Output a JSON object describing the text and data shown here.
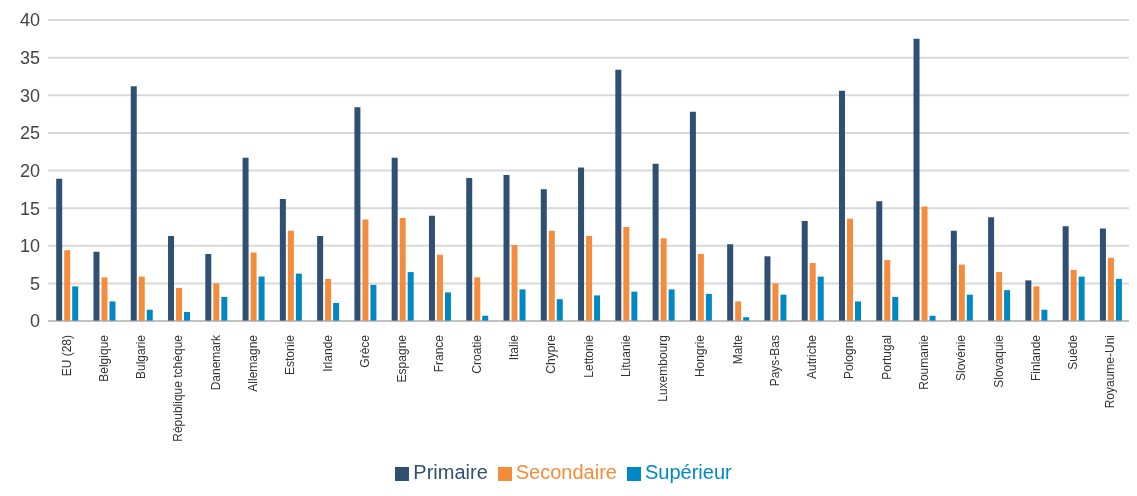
{
  "chart_data": {
    "type": "bar",
    "categories": [
      "EU (28)",
      "Belgique",
      "Bulgarie",
      "République tchèque",
      "Danemark",
      "Allemagne",
      "Estonie",
      "Irlande",
      "Grèce",
      "Espagne",
      "France",
      "Croatie",
      "Italie",
      "Chypre",
      "Lettonie",
      "Lituanie",
      "Luxembourg",
      "Hongrie",
      "Malte",
      "Pays-Bas",
      "Autriche",
      "Pologne",
      "Portugal",
      "Roumanie",
      "Slovénie",
      "Slovaquie",
      "Finlande",
      "Suède",
      "Royaume-Uni"
    ],
    "series": [
      {
        "name": "Primaire",
        "color": "#2f5073",
        "values": [
          18.9,
          9.2,
          31.2,
          11.3,
          8.9,
          21.7,
          16.2,
          11.3,
          28.4,
          21.7,
          14.0,
          19.0,
          19.4,
          17.5,
          20.4,
          33.4,
          20.9,
          27.8,
          10.2,
          8.6,
          13.3,
          30.6,
          15.9,
          37.5,
          12.0,
          13.8,
          5.4,
          12.6,
          12.3
        ]
      },
      {
        "name": "Secondaire",
        "color": "#f58c3c",
        "values": [
          9.4,
          5.8,
          5.9,
          4.4,
          5.0,
          9.1,
          12.0,
          5.6,
          13.5,
          13.7,
          8.8,
          5.8,
          10.1,
          12.0,
          11.3,
          12.5,
          11.0,
          8.9,
          2.6,
          5.0,
          7.7,
          13.6,
          8.1,
          15.2,
          7.5,
          6.5,
          4.6,
          6.8,
          8.4
        ]
      },
      {
        "name": "Supérieur",
        "color": "#0088c4",
        "values": [
          4.6,
          2.6,
          1.5,
          1.2,
          3.2,
          5.9,
          6.3,
          2.4,
          4.8,
          6.5,
          3.8,
          0.7,
          4.2,
          2.9,
          3.4,
          3.9,
          4.2,
          3.6,
          0.5,
          3.5,
          5.9,
          2.6,
          3.2,
          0.7,
          3.5,
          4.1,
          1.5,
          5.9,
          5.6
        ]
      }
    ],
    "ylim": [
      0,
      40
    ],
    "yticks": [
      0,
      5,
      10,
      15,
      20,
      25,
      30,
      35,
      40
    ],
    "grid": "y",
    "legend": "bottom"
  }
}
